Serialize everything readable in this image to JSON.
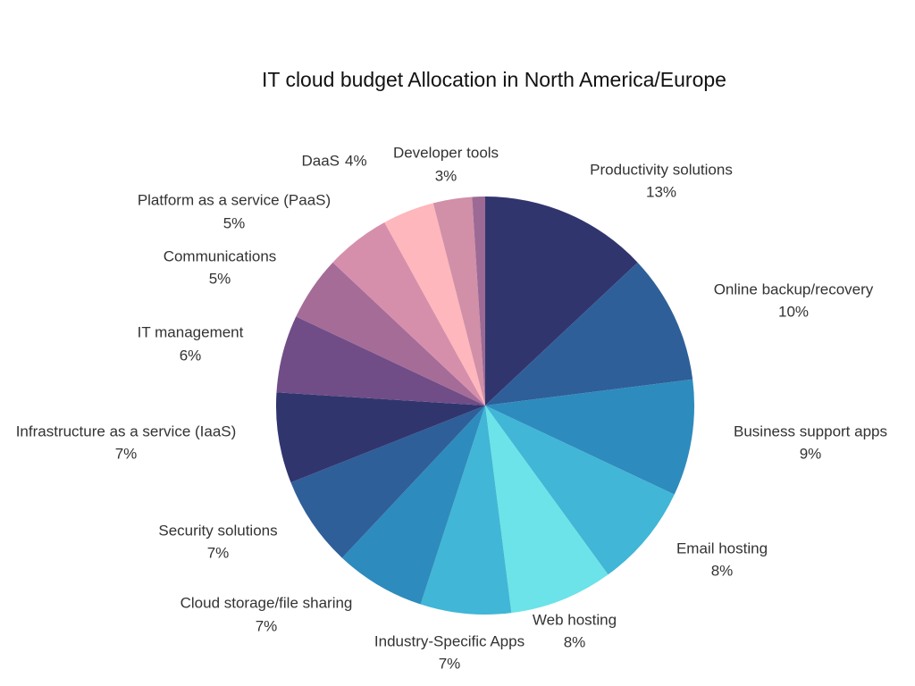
{
  "chart_data": {
    "type": "pie",
    "title": "IT cloud budget Allocation in North America/Europe",
    "categories": [
      "Productivity solutions",
      "Online backup/recovery",
      "Business support apps",
      "Email hosting",
      "Web hosting",
      "Industry-Specific Apps",
      "Cloud storage/file sharing",
      "Security solutions",
      "Infrastructure as a service (IaaS)",
      "IT management",
      "Communications",
      "Platform as a service (PaaS)",
      "DaaS",
      "Developer tools",
      null
    ],
    "values": [
      13,
      10,
      9,
      8,
      8,
      7,
      7,
      7,
      7,
      6,
      5,
      5,
      4,
      3,
      1
    ],
    "value_labels": [
      "13%",
      "10%",
      "9%",
      "8%",
      "8%",
      "7%",
      "7%",
      "7%",
      "7%",
      "6%",
      "5%",
      "5%",
      "4%",
      "3%",
      null
    ],
    "colors": [
      "#31356e",
      "#2e5f99",
      "#2e8bbd",
      "#41b6d6",
      "#6be3e8",
      "#41b6d6",
      "#2e8bbd",
      "#2e5f99",
      "#31356e",
      "#704d87",
      "#a56c98",
      "#d68fab",
      "#feb7bc",
      "#d18fa8",
      "#9c6a95"
    ]
  }
}
